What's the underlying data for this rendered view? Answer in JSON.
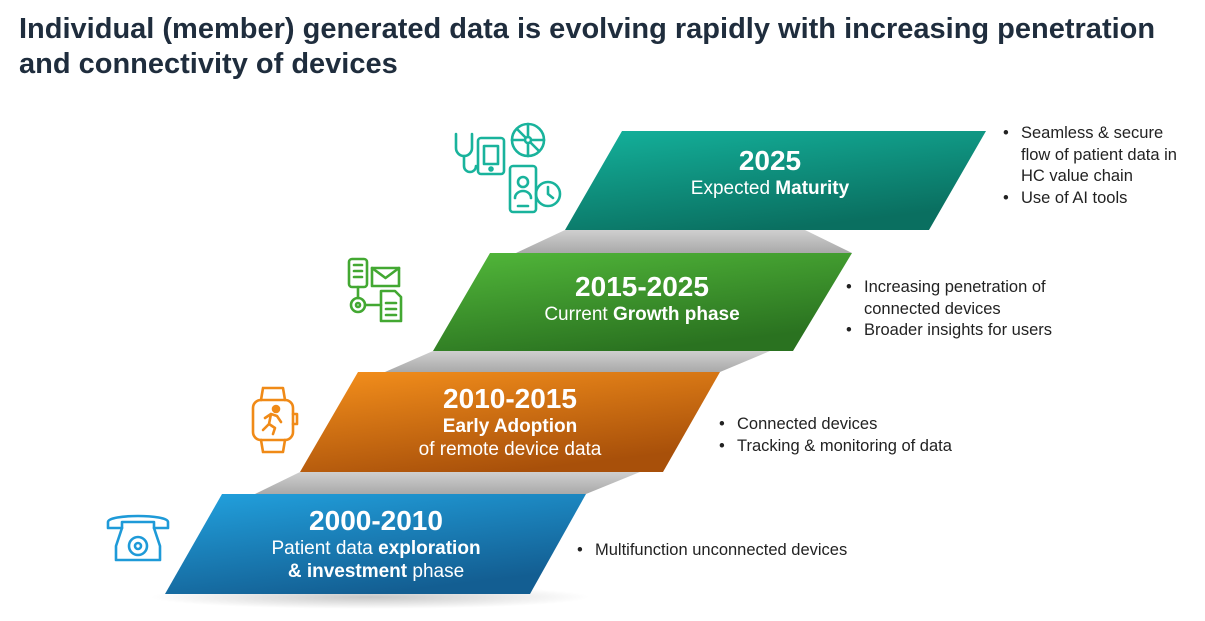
{
  "title": "Individual (member) generated data is evolving rapidly with increasing penetration and connectivity of devices",
  "colors": {
    "teal": "#0e9a88",
    "green": "#3e9a2d",
    "orange": "#e4760f",
    "blue": "#1a82c3",
    "title_text": "#1f2d3d"
  },
  "steps": [
    {
      "period": "2025",
      "line1_plain": "Expected ",
      "line1_bold": "Maturity",
      "bullets": [
        "Seamless & secure flow of patient data in HC value chain",
        "Use of AI tools"
      ],
      "icon": "connected-health-devices-icon"
    },
    {
      "period": "2015-2025",
      "line1_plain": "Current ",
      "line1_bold": "Growth phase",
      "bullets": [
        "Increasing penetration of connected devices",
        "Broader insights for users"
      ],
      "icon": "phone-mail-document-network-icon"
    },
    {
      "period": "2010-2015",
      "line1_bold": "Early Adoption",
      "line2_plain": "of remote device data",
      "bullets": [
        "Connected devices",
        "Tracking & monitoring of data"
      ],
      "icon": "fitness-smartwatch-icon"
    },
    {
      "period": "2000-2010",
      "line1_plain": "Patient data ",
      "line1_bold": "exploration",
      "line2_bold": "& investment",
      "line2_plain": " phase",
      "bullets": [
        "Multifunction unconnected devices"
      ],
      "icon": "telephone-icon"
    }
  ]
}
